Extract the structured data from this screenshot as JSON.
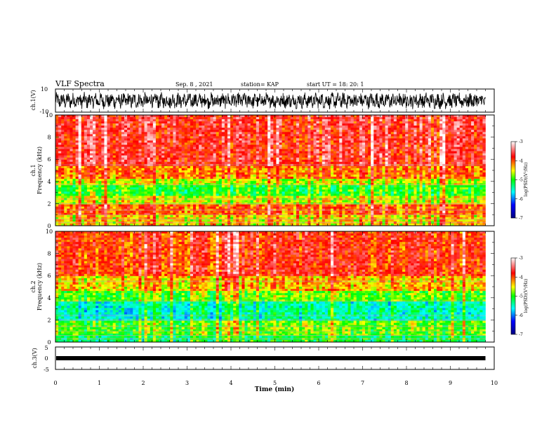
{
  "header": {
    "title": "VLF Spectra",
    "date": "Sep. 8  , 2021",
    "station": "station= KAP",
    "start_ut": "start  UT  =   18: 20: 1"
  },
  "chart_data": [
    {
      "type": "line",
      "name": "ch1-waveform",
      "ylabel": "ch.1(V)",
      "ylim": [
        -10,
        10
      ],
      "yticks": [
        "10",
        "-10"
      ],
      "xlim": [
        0,
        10
      ],
      "data_end_min": 9.8,
      "line_color": "#000000"
    },
    {
      "type": "heatmap",
      "name": "ch1-spectrogram",
      "ylabel": "ch.1\nFrequency  (kHz)",
      "ylim": [
        0,
        10
      ],
      "yticks": [
        "0",
        "2",
        "4",
        "6",
        "8",
        "10"
      ],
      "xlim": [
        0,
        10
      ],
      "data_end_min": 9.8,
      "bands_khz": [
        {
          "from": 0,
          "to": 1.0,
          "level": -4.4
        },
        {
          "from": 1.0,
          "to": 2.0,
          "level": -4.0
        },
        {
          "from": 2.0,
          "to": 2.6,
          "level": -4.6
        },
        {
          "from": 2.6,
          "to": 3.6,
          "level": -5.0
        },
        {
          "from": 3.6,
          "to": 4.3,
          "level": -4.6
        },
        {
          "from": 4.3,
          "to": 5.4,
          "level": -4.1
        },
        {
          "from": 5.4,
          "to": 10.0,
          "level": -3.7
        }
      ]
    },
    {
      "type": "heatmap",
      "name": "ch2-spectrogram",
      "ylabel": "ch.2\nFrequency  (kHz)",
      "ylim": [
        0,
        10
      ],
      "yticks": [
        "0",
        "2",
        "4",
        "6",
        "8",
        "10"
      ],
      "xlim": [
        0,
        10
      ],
      "data_end_min": 9.8,
      "bands_khz": [
        {
          "from": 0,
          "to": 0.5,
          "level": -5.2
        },
        {
          "from": 0.5,
          "to": 2.0,
          "level": -4.9
        },
        {
          "from": 2.0,
          "to": 3.6,
          "level": -5.5
        },
        {
          "from": 3.6,
          "to": 4.6,
          "level": -4.9
        },
        {
          "from": 4.6,
          "to": 6.0,
          "level": -4.4
        },
        {
          "from": 6.0,
          "to": 10.0,
          "level": -3.9
        }
      ]
    },
    {
      "type": "line",
      "name": "ch3-waveform",
      "ylabel": "ch.3(V)",
      "ylim": [
        -5,
        5
      ],
      "yticks": [
        "5",
        "0",
        "-5"
      ],
      "xlim": [
        0,
        10
      ],
      "xlabel": "Time  (min)",
      "xticks": [
        "0",
        "1",
        "2",
        "3",
        "4",
        "5",
        "6",
        "7",
        "8",
        "9",
        "10"
      ],
      "level_v": 0,
      "data_end_min": 9.8
    }
  ],
  "colorbar": {
    "label": "log(PSD)(V²/Hz)",
    "range": [
      -7,
      -3
    ],
    "ticks": [
      "-3",
      "-4",
      "-5",
      "-6",
      "-7"
    ],
    "stops": [
      "#000080",
      "#0000ff",
      "#00ffff",
      "#00ff00",
      "#ffff00",
      "#ff0000",
      "#ffffff"
    ]
  }
}
